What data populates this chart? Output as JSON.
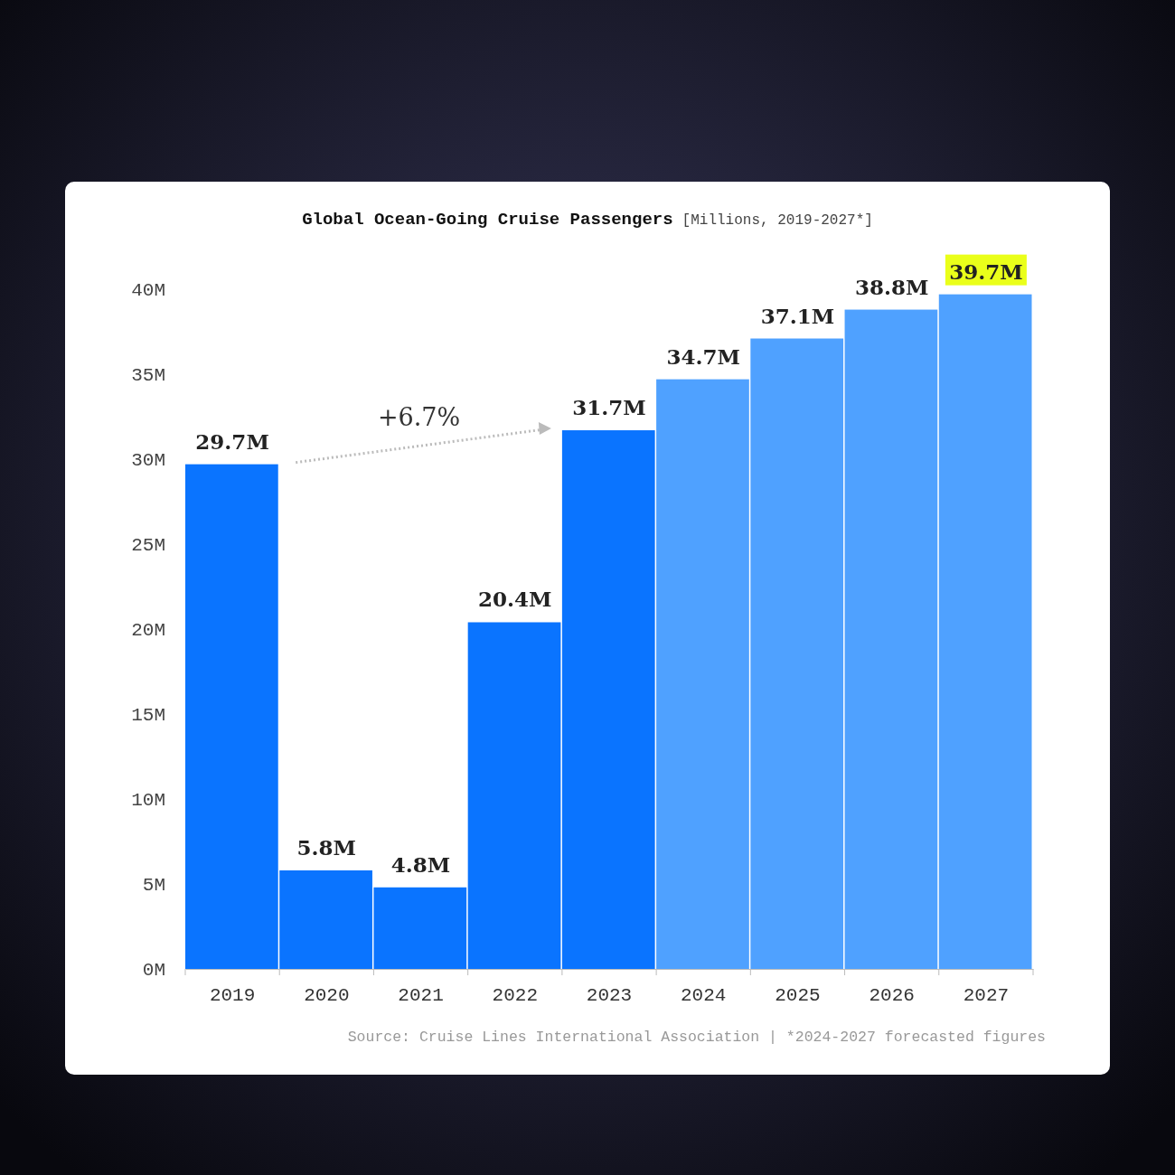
{
  "chart_data": {
    "type": "bar",
    "title": "Global Ocean-Going Cruise Passengers",
    "subtitle": "[Millions, 2019-2027*]",
    "categories": [
      "2019",
      "2020",
      "2021",
      "2022",
      "2023",
      "2024",
      "2025",
      "2026",
      "2027"
    ],
    "values": [
      29.7,
      5.8,
      4.8,
      20.4,
      31.7,
      34.7,
      37.1,
      38.8,
      39.7
    ],
    "colors": [
      "#0a74ff",
      "#0a74ff",
      "#0a74ff",
      "#0a74ff",
      "#0a74ff",
      "#4fa1ff",
      "#4fa1ff",
      "#4fa1ff",
      "#4fa1ff"
    ],
    "value_labels": [
      "29.7M",
      "5.8M",
      "4.8M",
      "20.4M",
      "31.7M",
      "34.7M",
      "37.1M",
      "38.8M",
      "39.7M"
    ],
    "ylim": [
      0,
      40
    ],
    "yticks": [
      {
        "value": 0,
        "label": "0M"
      },
      {
        "value": 5,
        "label": "5M"
      },
      {
        "value": 10,
        "label": "10M"
      },
      {
        "value": 15,
        "label": "15M"
      },
      {
        "value": 20,
        "label": "20M"
      },
      {
        "value": 25,
        "label": "25M"
      },
      {
        "value": 30,
        "label": "30M"
      },
      {
        "value": 35,
        "label": "35M"
      },
      {
        "value": 40,
        "label": "40M"
      }
    ],
    "grid": false,
    "annotations": [
      "+6.7%",
      "Source: Cruise Lines International Association | *2024-2027 forecasted figures"
    ]
  }
}
